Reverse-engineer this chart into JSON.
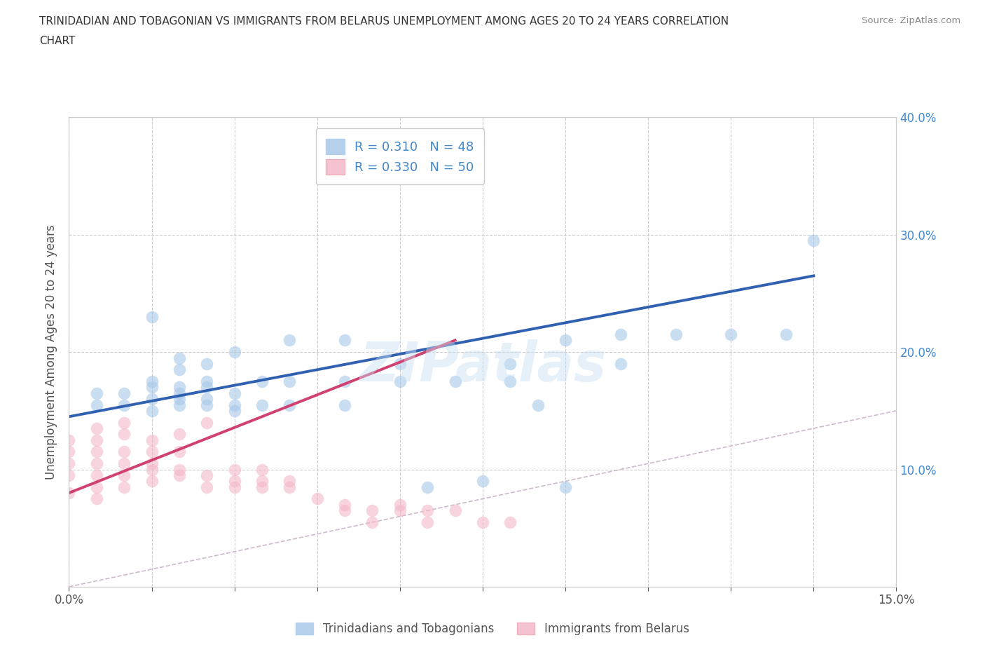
{
  "title_line1": "TRINIDADIAN AND TOBAGONIAN VS IMMIGRANTS FROM BELARUS UNEMPLOYMENT AMONG AGES 20 TO 24 YEARS CORRELATION",
  "title_line2": "CHART",
  "source_text": "Source: ZipAtlas.com",
  "ylabel_label": "Unemployment Among Ages 20 to 24 years",
  "xmin": 0.0,
  "xmax": 0.15,
  "ymin": 0.0,
  "ymax": 0.4,
  "legend_r1": "R = 0.310",
  "legend_n1": "N = 48",
  "legend_r2": "R = 0.330",
  "legend_n2": "N = 50",
  "blue_color": "#a8c8e8",
  "pink_color": "#f4b8c8",
  "blue_line_color": "#3060b0",
  "pink_line_color": "#d04070",
  "diagonal_color": "#ccbbcc",
  "watermark": "ZIPatlas",
  "ytick_color": "#4488cc",
  "blue_scatter_x": [
    0.005,
    0.005,
    0.01,
    0.01,
    0.015,
    0.015,
    0.015,
    0.015,
    0.015,
    0.02,
    0.02,
    0.02,
    0.02,
    0.02,
    0.02,
    0.025,
    0.025,
    0.025,
    0.025,
    0.025,
    0.03,
    0.03,
    0.03,
    0.03,
    0.035,
    0.035,
    0.04,
    0.04,
    0.04,
    0.05,
    0.05,
    0.05,
    0.06,
    0.06,
    0.065,
    0.07,
    0.075,
    0.08,
    0.08,
    0.085,
    0.09,
    0.09,
    0.1,
    0.1,
    0.11,
    0.12,
    0.13,
    0.135
  ],
  "blue_scatter_y": [
    0.155,
    0.165,
    0.155,
    0.165,
    0.15,
    0.16,
    0.17,
    0.175,
    0.23,
    0.155,
    0.16,
    0.165,
    0.17,
    0.185,
    0.195,
    0.155,
    0.16,
    0.17,
    0.175,
    0.19,
    0.15,
    0.155,
    0.165,
    0.2,
    0.155,
    0.175,
    0.155,
    0.175,
    0.21,
    0.155,
    0.175,
    0.21,
    0.175,
    0.19,
    0.085,
    0.175,
    0.09,
    0.175,
    0.19,
    0.155,
    0.085,
    0.21,
    0.19,
    0.215,
    0.215,
    0.215,
    0.215,
    0.295
  ],
  "pink_scatter_x": [
    0.0,
    0.0,
    0.0,
    0.0,
    0.0,
    0.005,
    0.005,
    0.005,
    0.005,
    0.005,
    0.005,
    0.005,
    0.01,
    0.01,
    0.01,
    0.01,
    0.01,
    0.01,
    0.015,
    0.015,
    0.015,
    0.015,
    0.015,
    0.02,
    0.02,
    0.02,
    0.02,
    0.025,
    0.025,
    0.025,
    0.03,
    0.03,
    0.03,
    0.035,
    0.035,
    0.035,
    0.04,
    0.04,
    0.045,
    0.05,
    0.05,
    0.055,
    0.055,
    0.06,
    0.06,
    0.065,
    0.065,
    0.07,
    0.075,
    0.08
  ],
  "pink_scatter_y": [
    0.08,
    0.095,
    0.105,
    0.115,
    0.125,
    0.075,
    0.085,
    0.095,
    0.105,
    0.115,
    0.125,
    0.135,
    0.085,
    0.095,
    0.105,
    0.115,
    0.13,
    0.14,
    0.09,
    0.1,
    0.105,
    0.115,
    0.125,
    0.095,
    0.1,
    0.115,
    0.13,
    0.085,
    0.095,
    0.14,
    0.085,
    0.09,
    0.1,
    0.085,
    0.09,
    0.1,
    0.085,
    0.09,
    0.075,
    0.065,
    0.07,
    0.055,
    0.065,
    0.065,
    0.07,
    0.055,
    0.065,
    0.065,
    0.055,
    0.055
  ],
  "blue_trend_x": [
    0.0,
    0.135
  ],
  "blue_trend_y": [
    0.145,
    0.265
  ],
  "pink_trend_x": [
    0.0,
    0.07
  ],
  "pink_trend_y": [
    0.08,
    0.21
  ],
  "bg_color": "#ffffff",
  "plot_bg_color": "#ffffff"
}
